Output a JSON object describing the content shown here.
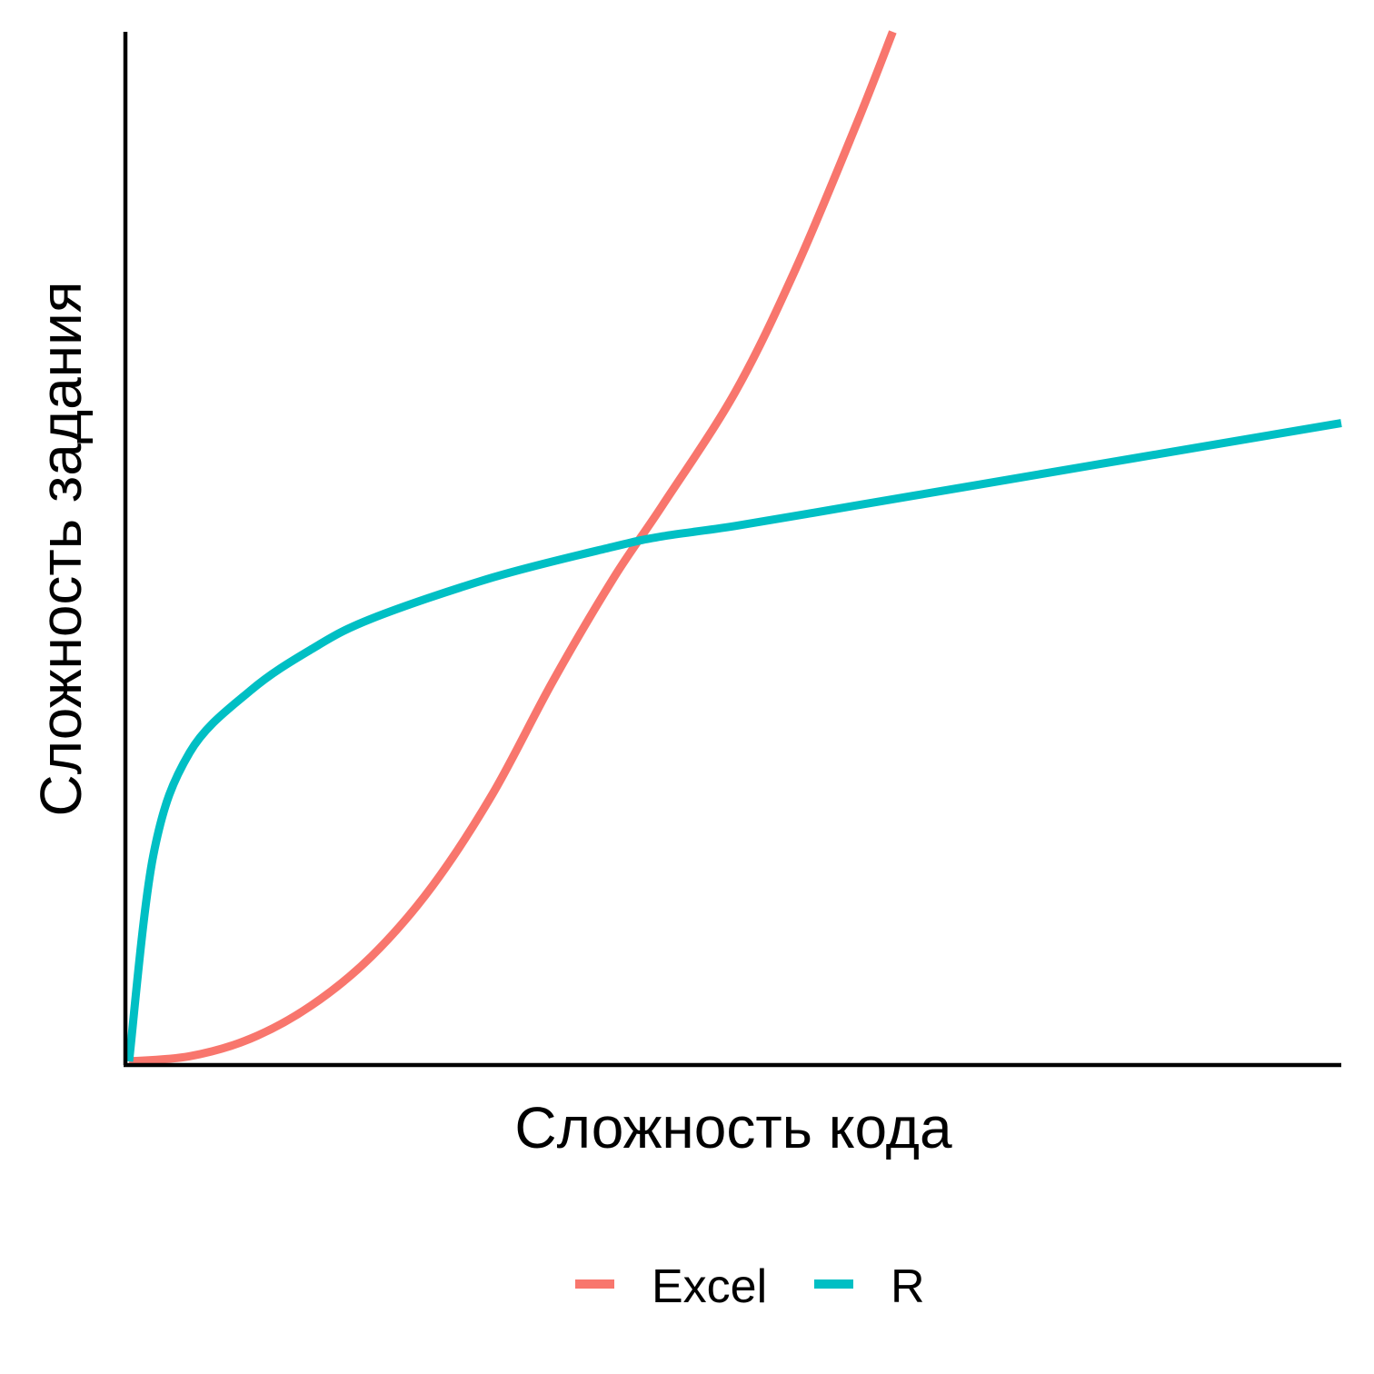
{
  "chart_data": {
    "type": "line",
    "xlabel": "Сложность кода",
    "ylabel": "Сложность задания",
    "xlim": [
      0,
      1
    ],
    "ylim": [
      0,
      1
    ],
    "x_ticks_shown": false,
    "y_ticks_shown": false,
    "grid": false,
    "legend_position": "bottom",
    "series": [
      {
        "name": "Excel",
        "color": "#F8766D",
        "x": [
          0,
          0.05,
          0.1,
          0.15,
          0.2,
          0.25,
          0.3,
          0.35,
          0.4,
          0.44,
          0.5,
          0.55,
          0.6,
          0.63
        ],
        "y": [
          0,
          0.005,
          0.022,
          0.054,
          0.102,
          0.17,
          0.26,
          0.37,
          0.47,
          0.54,
          0.65,
          0.77,
          0.91,
          1.0
        ]
      },
      {
        "name": "R",
        "color": "#00BFC4",
        "x": [
          0,
          0.02,
          0.05,
          0.1,
          0.15,
          0.2,
          0.3,
          0.4,
          0.44,
          0.5,
          0.6,
          0.7,
          0.8,
          0.9,
          1.0
        ],
        "y": [
          0,
          0.2,
          0.3,
          0.36,
          0.4,
          0.43,
          0.47,
          0.5,
          0.51,
          0.52,
          0.54,
          0.56,
          0.58,
          0.6,
          0.62
        ]
      }
    ]
  }
}
